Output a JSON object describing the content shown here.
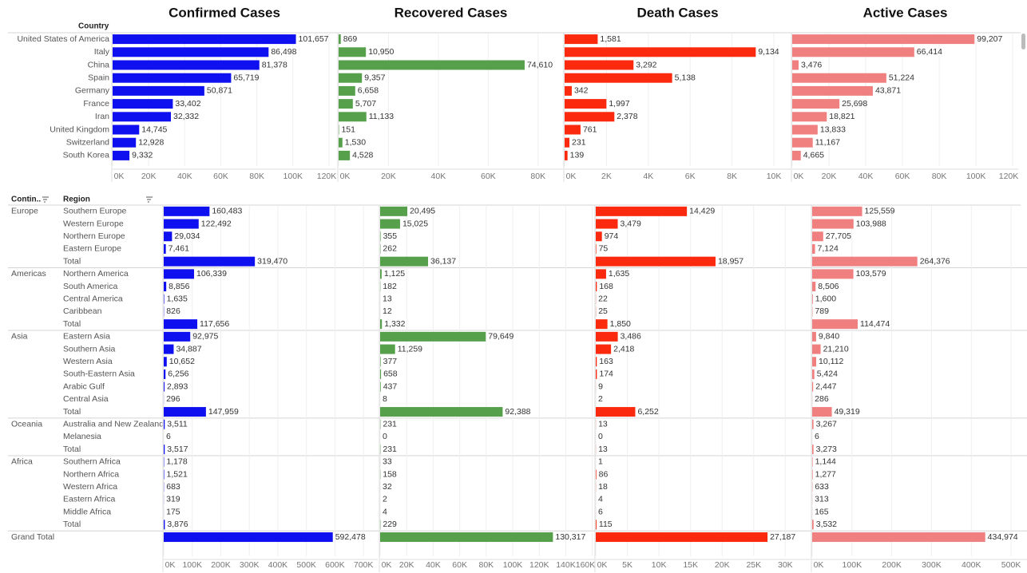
{
  "chart_data": [
    {
      "type": "bar",
      "row_header": "Country",
      "categories": [
        "United States of America",
        "Italy",
        "China",
        "Spain",
        "Germany",
        "France",
        "Iran",
        "United Kingdom",
        "Switzerland",
        "South Korea"
      ],
      "grid": true,
      "series": [
        {
          "name": "Confirmed Cases",
          "color": "#0f10ef",
          "values": [
            101657,
            86498,
            81378,
            65719,
            50871,
            33402,
            32332,
            14745,
            12928,
            9332
          ],
          "value_labels": [
            "101,657",
            "86,498",
            "81,378",
            "65,719",
            "50,871",
            "33,402",
            "32,332",
            "14,745",
            "12,928",
            "9,332"
          ],
          "xlim": [
            0,
            124000
          ],
          "xticks": [
            {
              "value": 0,
              "label": "0K"
            },
            {
              "value": 20000,
              "label": "20K"
            },
            {
              "value": 40000,
              "label": "40K"
            },
            {
              "value": 60000,
              "label": "60K"
            },
            {
              "value": 80000,
              "label": "80K"
            },
            {
              "value": 100000,
              "label": "100K"
            },
            {
              "value": 120000,
              "label": "120K"
            }
          ]
        },
        {
          "name": "Recovered Cases",
          "color": "#56a04c",
          "values": [
            869,
            10950,
            74610,
            9357,
            6658,
            5707,
            11133,
            151,
            1530,
            4528
          ],
          "value_labels": [
            "869",
            "10,950",
            "74,610",
            "9,357",
            "6,658",
            "5,707",
            "11,133",
            "151",
            "1,530",
            "4,528"
          ],
          "xlim": [
            0,
            90000
          ],
          "xticks": [
            {
              "value": 0,
              "label": "0K"
            },
            {
              "value": 20000,
              "label": "20K"
            },
            {
              "value": 40000,
              "label": "40K"
            },
            {
              "value": 60000,
              "label": "60K"
            },
            {
              "value": 80000,
              "label": "80K"
            }
          ]
        },
        {
          "name": "Death Cases",
          "color": "#fb2a0e",
          "values": [
            1581,
            9134,
            3292,
            5138,
            342,
            1997,
            2378,
            761,
            231,
            139
          ],
          "value_labels": [
            "1,581",
            "9,134",
            "3,292",
            "5,138",
            "342",
            "1,997",
            "2,378",
            "761",
            "231",
            "139"
          ],
          "xlim": [
            0,
            10800
          ],
          "xticks": [
            {
              "value": 0,
              "label": "0K"
            },
            {
              "value": 2000,
              "label": "2K"
            },
            {
              "value": 4000,
              "label": "4K"
            },
            {
              "value": 6000,
              "label": "6K"
            },
            {
              "value": 8000,
              "label": "8K"
            },
            {
              "value": 10000,
              "label": "10K"
            }
          ]
        },
        {
          "name": "Active Cases",
          "color": "#f07f7f",
          "values": [
            99207,
            66414,
            3476,
            51224,
            43871,
            25698,
            18821,
            13833,
            11167,
            4665
          ],
          "value_labels": [
            "99,207",
            "66,414",
            "3,476",
            "51,224",
            "43,871",
            "25,698",
            "18,821",
            "13,833",
            "11,167",
            "4,665"
          ],
          "xlim": [
            0,
            123000
          ],
          "xticks": [
            {
              "value": 0,
              "label": "0K"
            },
            {
              "value": 20000,
              "label": "20K"
            },
            {
              "value": 40000,
              "label": "40K"
            },
            {
              "value": 60000,
              "label": "60K"
            },
            {
              "value": 80000,
              "label": "80K"
            },
            {
              "value": 100000,
              "label": "100K"
            },
            {
              "value": 120000,
              "label": "120K"
            }
          ]
        }
      ]
    },
    {
      "type": "bar",
      "group_header": "Contin..",
      "row_header": "Region",
      "continents": [
        "Europe",
        null,
        null,
        null,
        null,
        "Americas",
        null,
        null,
        null,
        null,
        "Asia",
        null,
        null,
        null,
        null,
        null,
        null,
        "Oceania",
        null,
        null,
        "Africa",
        null,
        null,
        null,
        null,
        null,
        "Grand Total"
      ],
      "categories": [
        "Southern Europe",
        "Western Europe",
        "Northern Europe",
        "Eastern Europe",
        "Total",
        "Northern America",
        "South America",
        "Central America",
        "Caribbean",
        "Total",
        "Eastern Asia",
        "Southern Asia",
        "Western Asia",
        "South-Eastern Asia",
        "Arabic Gulf",
        "Central Asia",
        "Total",
        "Australia and New Zealand",
        "Melanesia",
        "Total",
        "Southern Africa",
        "Northern Africa",
        "Western Africa",
        "Eastern Africa",
        "Middle Africa",
        "Total",
        null
      ],
      "grid": true,
      "series": [
        {
          "color": "#0f10ef",
          "values": [
            160483,
            122492,
            29034,
            7461,
            319470,
            106339,
            8856,
            1635,
            826,
            117656,
            92975,
            34887,
            10652,
            6256,
            2893,
            296,
            147959,
            3511,
            6,
            3517,
            1178,
            1521,
            683,
            319,
            175,
            3876,
            592478
          ],
          "value_labels": [
            "160,483",
            "122,492",
            "29,034",
            "7,461",
            "319,470",
            "106,339",
            "8,856",
            "1,635",
            "826",
            "117,656",
            "92,975",
            "34,887",
            "10,652",
            "6,256",
            "2,893",
            "296",
            "147,959",
            "3,511",
            "6",
            "3,517",
            "1,178",
            "1,521",
            "683",
            "319",
            "175",
            "3,876",
            "592,478"
          ],
          "xlim": [
            0,
            750000
          ],
          "xticks": [
            {
              "value": 0,
              "label": "0K"
            },
            {
              "value": 100000,
              "label": "100K"
            },
            {
              "value": 200000,
              "label": "200K"
            },
            {
              "value": 300000,
              "label": "300K"
            },
            {
              "value": 400000,
              "label": "400K"
            },
            {
              "value": 500000,
              "label": "500K"
            },
            {
              "value": 600000,
              "label": "600K"
            },
            {
              "value": 700000,
              "label": "700K"
            }
          ]
        },
        {
          "color": "#56a04c",
          "values": [
            20495,
            15025,
            355,
            262,
            36137,
            1125,
            182,
            13,
            12,
            1332,
            79649,
            11259,
            377,
            658,
            437,
            8,
            92388,
            231,
            0,
            231,
            33,
            158,
            32,
            2,
            4,
            229,
            130317
          ],
          "value_labels": [
            "20,495",
            "15,025",
            "355",
            "262",
            "36,137",
            "1,125",
            "182",
            "13",
            "12",
            "1,332",
            "79,649",
            "11,259",
            "377",
            "658",
            "437",
            "8",
            "92,388",
            "231",
            "0",
            "231",
            "33",
            "158",
            "32",
            "2",
            "4",
            "229",
            "130,317"
          ],
          "xlim": [
            0,
            162000
          ],
          "xticks": [
            {
              "value": 0,
              "label": "0K"
            },
            {
              "value": 20000,
              "label": "20K"
            },
            {
              "value": 40000,
              "label": "40K"
            },
            {
              "value": 60000,
              "label": "60K"
            },
            {
              "value": 80000,
              "label": "80K"
            },
            {
              "value": 100000,
              "label": "100K"
            },
            {
              "value": 120000,
              "label": "120K"
            },
            {
              "value": 140000,
              "label": "140K"
            },
            {
              "value": 160000,
              "label": "160K"
            }
          ]
        },
        {
          "color": "#fb2a0e",
          "values": [
            14429,
            3479,
            974,
            75,
            18957,
            1635,
            168,
            22,
            25,
            1850,
            3486,
            2418,
            163,
            174,
            9,
            2,
            6252,
            13,
            0,
            13,
            1,
            86,
            18,
            4,
            6,
            115,
            27187
          ],
          "value_labels": [
            "14,429",
            "3,479",
            "974",
            "75",
            "18,957",
            "1,635",
            "168",
            "22",
            "25",
            "1,850",
            "3,486",
            "2,418",
            "163",
            "174",
            "9",
            "2",
            "6,252",
            "13",
            "0",
            "13",
            "1",
            "86",
            "18",
            "4",
            "6",
            "115",
            "27,187"
          ],
          "xlim": [
            0,
            34000
          ],
          "xticks": [
            {
              "value": 0,
              "label": "0K"
            },
            {
              "value": 5000,
              "label": "5K"
            },
            {
              "value": 10000,
              "label": "10K"
            },
            {
              "value": 15000,
              "label": "15K"
            },
            {
              "value": 20000,
              "label": "20K"
            },
            {
              "value": 25000,
              "label": "25K"
            },
            {
              "value": 30000,
              "label": "30K"
            }
          ]
        },
        {
          "color": "#f07f7f",
          "values": [
            125559,
            103988,
            27705,
            7124,
            264376,
            103579,
            8506,
            1600,
            789,
            114474,
            9840,
            21210,
            10112,
            5424,
            2447,
            286,
            49319,
            3267,
            6,
            3273,
            1144,
            1277,
            633,
            313,
            165,
            3532,
            434974
          ],
          "value_labels": [
            "125,559",
            "103,988",
            "27,705",
            "7,124",
            "264,376",
            "103,579",
            "8,506",
            "1,600",
            "789",
            "114,474",
            "9,840",
            "21,210",
            "10,112",
            "5,424",
            "2,447",
            "286",
            "49,319",
            "3,267",
            "6",
            "3,273",
            "1,144",
            "1,277",
            "633",
            "313",
            "165",
            "3,532",
            "434,974"
          ],
          "xlim": [
            0,
            540000
          ],
          "xticks": [
            {
              "value": 0,
              "label": "0K"
            },
            {
              "value": 100000,
              "label": "100K"
            },
            {
              "value": 200000,
              "label": "200K"
            },
            {
              "value": 300000,
              "label": "300K"
            },
            {
              "value": 400000,
              "label": "400K"
            },
            {
              "value": 500000,
              "label": "500K"
            }
          ]
        }
      ]
    }
  ]
}
